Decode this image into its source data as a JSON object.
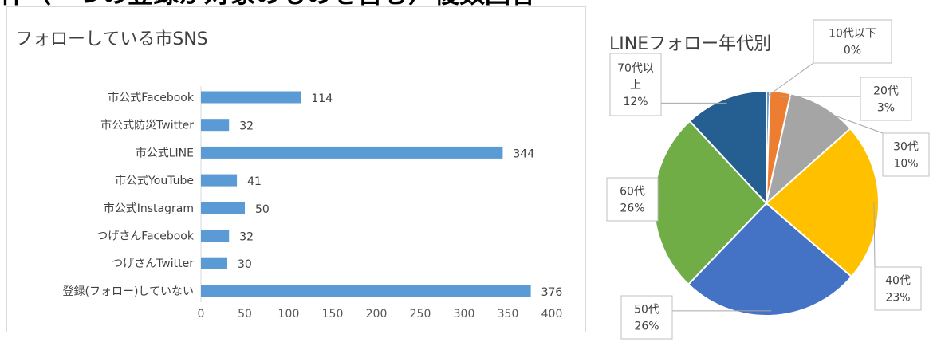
{
  "header_text": "件（一つの登録が対象のものを含む）複数回答",
  "chart_data": [
    {
      "type": "bar",
      "orientation": "horizontal",
      "title": "フォローしている市SNS",
      "categories": [
        "市公式Facebook",
        "市公式防災Twitter",
        "市公式LINE",
        "市公式YouTube",
        "市公式Instagram",
        "つげさんFacebook",
        "つげさんTwitter",
        "登録(フォロー)していない"
      ],
      "values": [
        114,
        32,
        344,
        41,
        50,
        32,
        30,
        376
      ],
      "xlim": [
        0,
        400
      ],
      "xticks": [
        "0",
        "50",
        "100",
        "150",
        "200",
        "250",
        "300",
        "350",
        "400"
      ],
      "grid": false,
      "color": "#5b9bd5"
    },
    {
      "type": "pie",
      "title": "LINEフォロー年代別",
      "slices": [
        {
          "label": "10代以下",
          "pct_label": "0%",
          "value": 0.5,
          "color": "#5b9bd5"
        },
        {
          "label": "20代",
          "pct_label": "3%",
          "value": 3,
          "color": "#ed7d31"
        },
        {
          "label": "30代",
          "pct_label": "10%",
          "value": 10,
          "color": "#a5a5a5"
        },
        {
          "label": "40代",
          "pct_label": "23%",
          "value": 23,
          "color": "#ffc000"
        },
        {
          "label": "50代",
          "pct_label": "26%",
          "value": 26,
          "color": "#4472c4"
        },
        {
          "label": "60代",
          "pct_label": "26%",
          "value": 26,
          "color": "#70ad47"
        },
        {
          "label": "70代以上",
          "label_lines": [
            "70代以",
            "上"
          ],
          "pct_label": "12%",
          "value": 12,
          "color": "#255e91"
        }
      ]
    }
  ]
}
